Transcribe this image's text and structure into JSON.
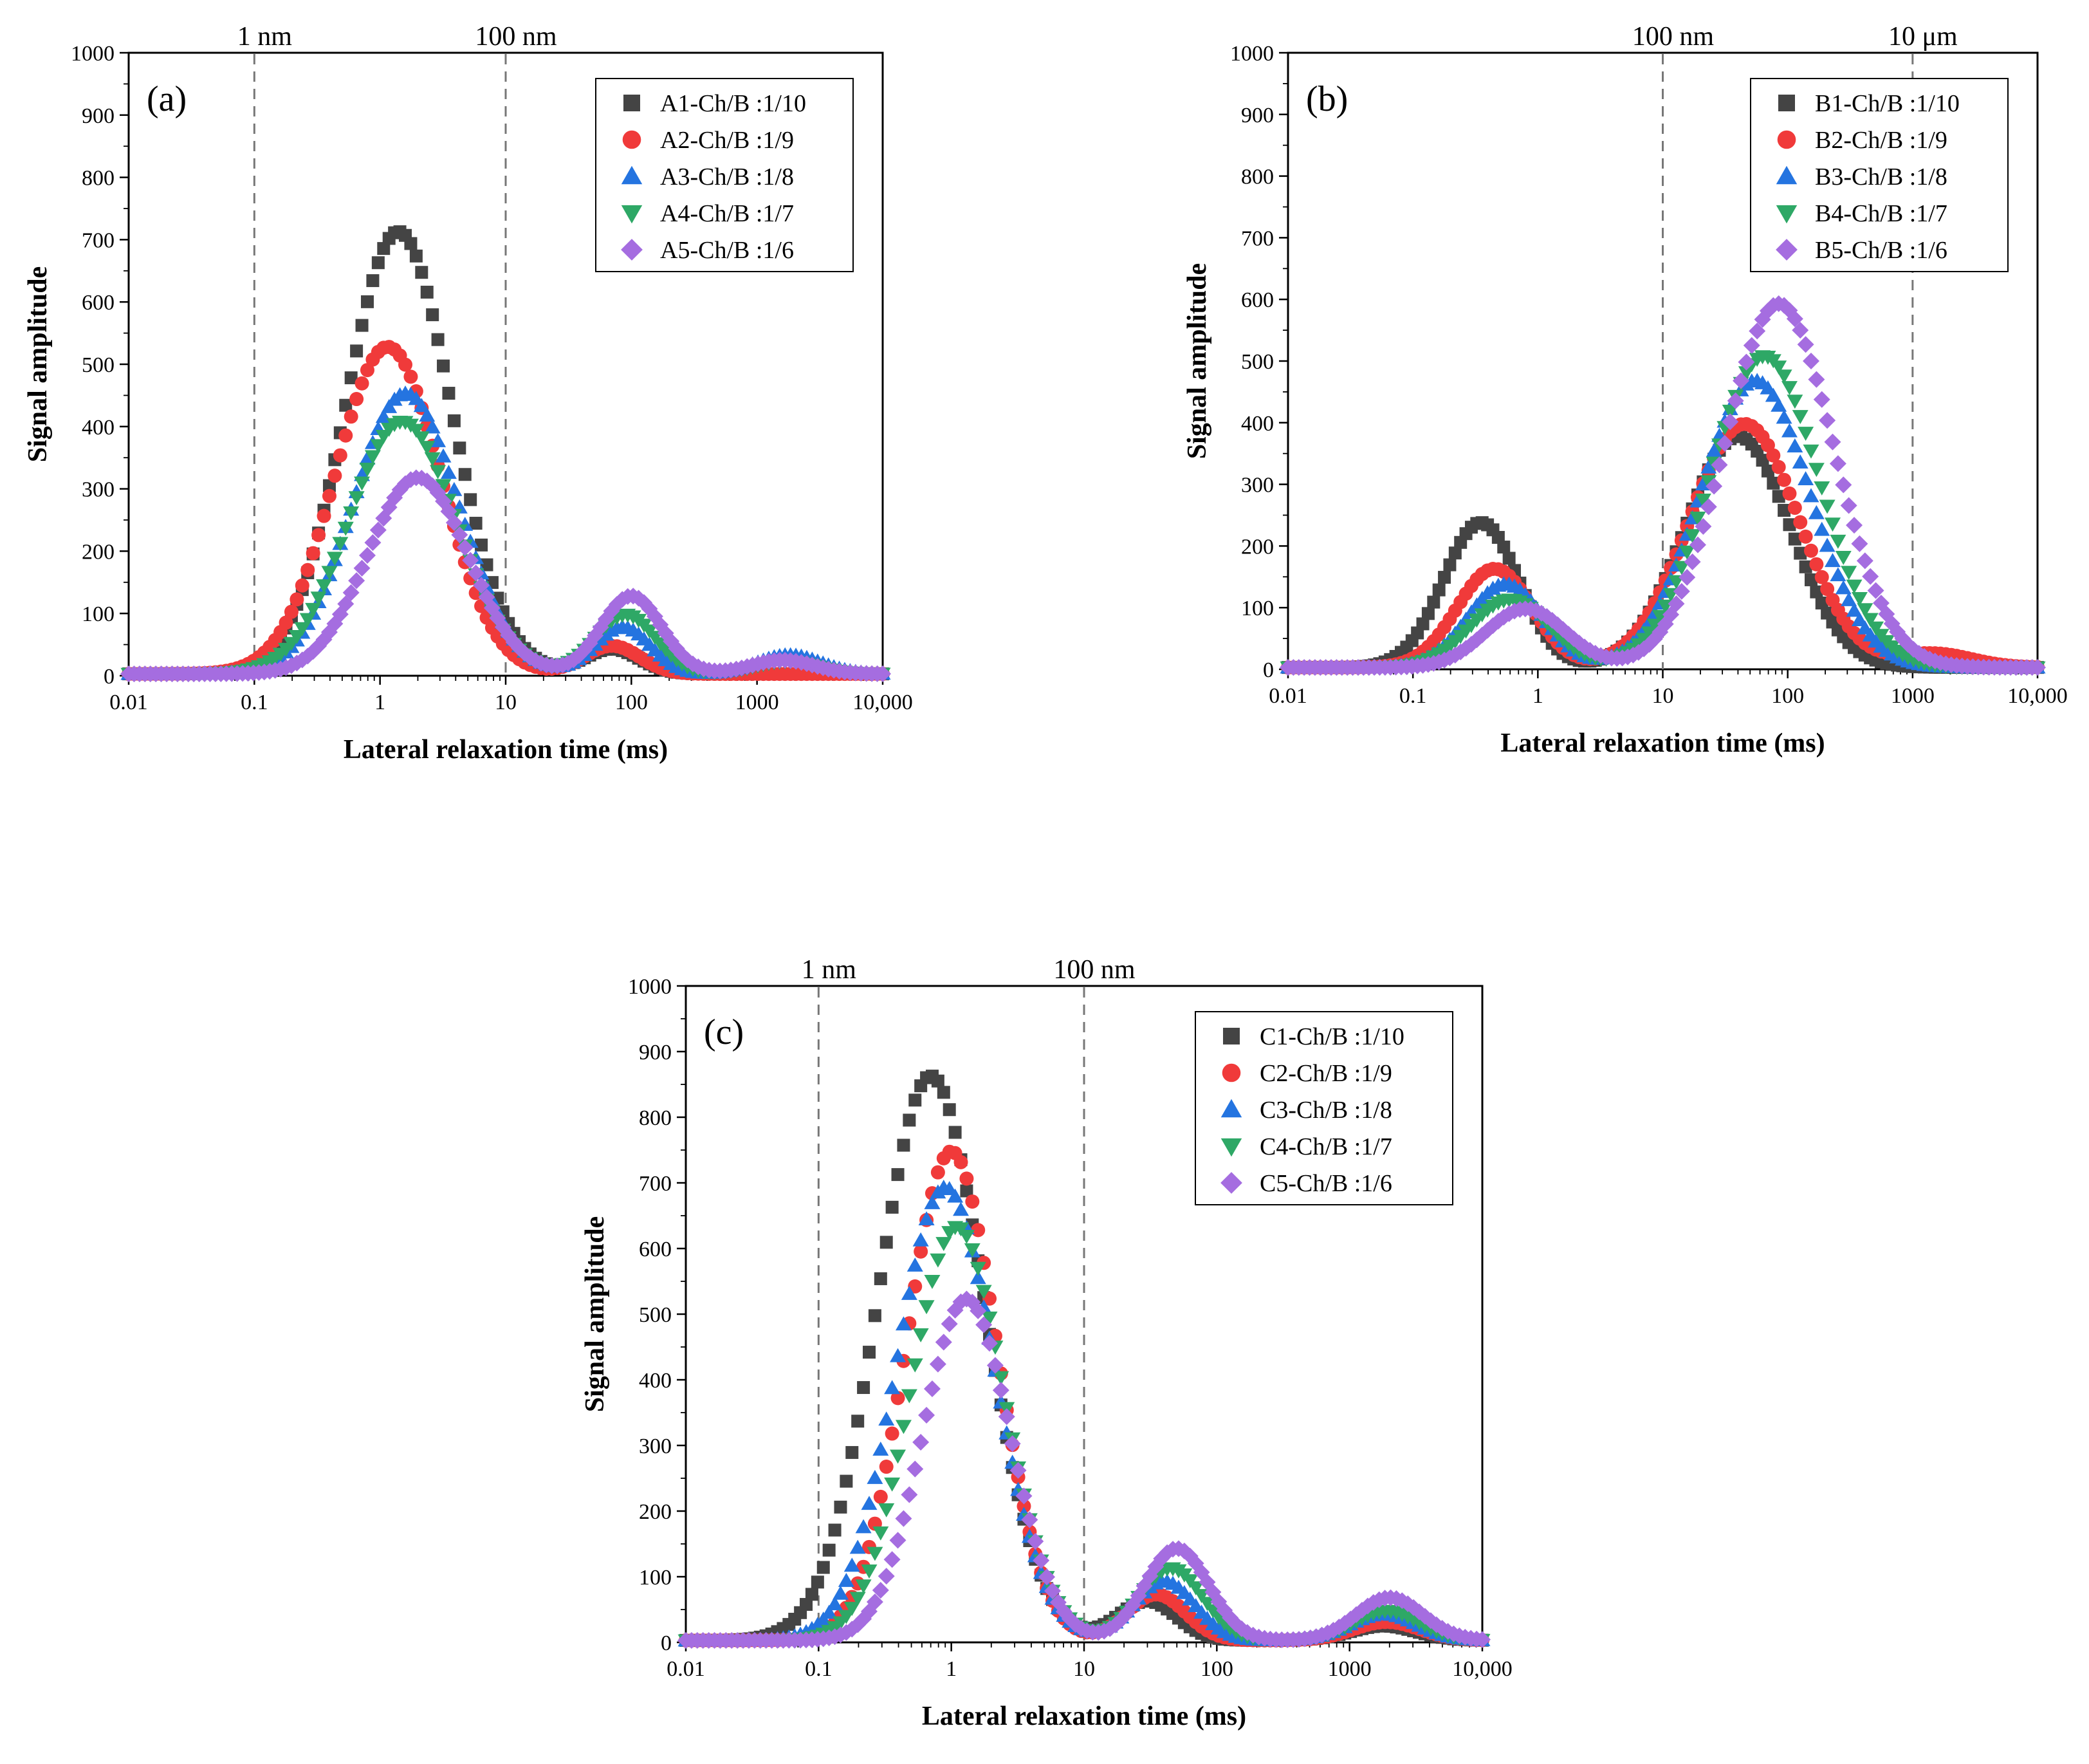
{
  "figure": {
    "series_colors": [
      "#444444",
      "#f03a3a",
      "#2474e0",
      "#2ea866",
      "#a56de0"
    ],
    "series_markers": [
      "square",
      "circle",
      "triangle-up",
      "triangle-down",
      "diamond"
    ]
  },
  "chart_data": [
    {
      "type": "scatter",
      "panel_label": "(a)",
      "xlabel": "Lateral relaxation time (ms)",
      "ylabel": "Signal amplitude",
      "xscale": "log",
      "xlim": [
        0.01,
        10000
      ],
      "ylim": [
        0,
        1000
      ],
      "x_ticks": [
        0.01,
        0.1,
        1,
        10,
        100,
        1000,
        10000
      ],
      "x_tick_labels": [
        "0.01",
        "0.1",
        "1",
        "10",
        "100",
        "1000",
        "10,000"
      ],
      "y_ticks": [
        0,
        100,
        200,
        300,
        400,
        500,
        600,
        700,
        800,
        900,
        1000
      ],
      "y_tick_labels": [
        "0",
        "100",
        "200",
        "300",
        "400",
        "500",
        "600",
        "700",
        "800",
        "900",
        "1000"
      ],
      "reference_lines": [
        {
          "x": 0.1,
          "label": "1 nm"
        },
        {
          "x": 10,
          "label": "100 nm"
        }
      ],
      "legend_position": "top-right",
      "series": [
        {
          "name": "A1-Ch/B :1/10",
          "peaks": [
            {
              "center": 1.4,
              "amp": 710,
              "width": 0.42
            },
            {
              "center": 70,
              "amp": 40,
              "width": 0.22
            }
          ]
        },
        {
          "name": "A2-Ch/B :1/9",
          "peaks": [
            {
              "center": 1.15,
              "amp": 525,
              "width": 0.42
            },
            {
              "center": 70,
              "amp": 45,
              "width": 0.22
            }
          ]
        },
        {
          "name": "A3-Ch/B :1/8",
          "peaks": [
            {
              "center": 1.6,
              "amp": 450,
              "width": 0.42
            },
            {
              "center": 85,
              "amp": 75,
              "width": 0.22
            },
            {
              "center": 1800,
              "amp": 30,
              "width": 0.25
            }
          ]
        },
        {
          "name": "A4-Ch/B :1/7",
          "peaks": [
            {
              "center": 1.5,
              "amp": 405,
              "width": 0.43
            },
            {
              "center": 90,
              "amp": 95,
              "width": 0.24
            },
            {
              "center": 1700,
              "amp": 20,
              "width": 0.25
            }
          ]
        },
        {
          "name": "A5-Ch/B :1/6",
          "peaks": [
            {
              "center": 2.0,
              "amp": 315,
              "width": 0.4
            },
            {
              "center": 100,
              "amp": 125,
              "width": 0.24
            },
            {
              "center": 1600,
              "amp": 22,
              "width": 0.25
            }
          ]
        }
      ]
    },
    {
      "type": "scatter",
      "panel_label": "(b)",
      "xlabel": "Lateral relaxation time (ms)",
      "ylabel": "Signal amplitude",
      "xscale": "log",
      "xlim": [
        0.01,
        10000
      ],
      "ylim": [
        0,
        1000
      ],
      "x_ticks": [
        0.01,
        0.1,
        1,
        10,
        100,
        1000,
        10000
      ],
      "x_tick_labels": [
        "0.01",
        "0.1",
        "1",
        "10",
        "100",
        "1000",
        "10,000"
      ],
      "y_ticks": [
        0,
        100,
        200,
        300,
        400,
        500,
        600,
        700,
        800,
        900,
        1000
      ],
      "y_tick_labels": [
        "0",
        "100",
        "200",
        "300",
        "400",
        "500",
        "600",
        "700",
        "800",
        "900",
        "1000"
      ],
      "reference_lines": [
        {
          "x": 10,
          "label": "100 nm"
        },
        {
          "x": 1000,
          "label": "10 μm"
        }
      ],
      "legend_position": "top-right",
      "series": [
        {
          "name": "B1-Ch/B :1/10",
          "peaks": [
            {
              "center": 0.35,
              "amp": 235,
              "width": 0.3
            },
            {
              "center": 40,
              "amp": 375,
              "width": 0.42
            }
          ]
        },
        {
          "name": "B2-Ch/B :1/9",
          "peaks": [
            {
              "center": 0.45,
              "amp": 160,
              "width": 0.3
            },
            {
              "center": 45,
              "amp": 395,
              "width": 0.44
            },
            {
              "center": 1500,
              "amp": 22,
              "width": 0.3
            }
          ]
        },
        {
          "name": "B3-Ch/B :1/8",
          "peaks": [
            {
              "center": 0.55,
              "amp": 135,
              "width": 0.3
            },
            {
              "center": 55,
              "amp": 465,
              "width": 0.44
            }
          ]
        },
        {
          "name": "B4-Ch/B :1/7",
          "peaks": [
            {
              "center": 0.6,
              "amp": 110,
              "width": 0.32
            },
            {
              "center": 65,
              "amp": 505,
              "width": 0.44
            }
          ]
        },
        {
          "name": "B5-Ch/B :1/6",
          "peaks": [
            {
              "center": 0.8,
              "amp": 95,
              "width": 0.32
            },
            {
              "center": 85,
              "amp": 590,
              "width": 0.44
            }
          ]
        }
      ]
    },
    {
      "type": "scatter",
      "panel_label": "(c)",
      "xlabel": "Lateral relaxation time (ms)",
      "ylabel": "Signal amplitude",
      "xscale": "log",
      "xlim": [
        0.01,
        10000
      ],
      "ylim": [
        0,
        1000
      ],
      "x_ticks": [
        0.01,
        0.1,
        1,
        10,
        100,
        1000,
        10000
      ],
      "x_tick_labels": [
        "0.01",
        "0.1",
        "1",
        "10",
        "100",
        "1000",
        "10,000"
      ],
      "y_ticks": [
        0,
        100,
        200,
        300,
        400,
        500,
        600,
        700,
        800,
        900,
        1000
      ],
      "y_tick_labels": [
        "0",
        "100",
        "200",
        "300",
        "400",
        "500",
        "600",
        "700",
        "800",
        "900",
        "1000"
      ],
      "reference_lines": [
        {
          "x": 0.1,
          "label": "1 nm"
        },
        {
          "x": 10,
          "label": "100 nm"
        }
      ],
      "legend_position": "top-right",
      "series": [
        {
          "name": "C1-Ch/B :1/10",
          "peaks": [
            {
              "center": 0.7,
              "amp": 860,
              "width": 0.4
            },
            {
              "center": 30,
              "amp": 60,
              "width": 0.22
            },
            {
              "center": 1800,
              "amp": 22,
              "width": 0.25
            }
          ]
        },
        {
          "name": "C2-Ch/B :1/9",
          "peaks": [
            {
              "center": 1.0,
              "amp": 745,
              "width": 0.34
            },
            {
              "center": 35,
              "amp": 70,
              "width": 0.22
            },
            {
              "center": 1900,
              "amp": 28,
              "width": 0.25
            }
          ]
        },
        {
          "name": "C3-Ch/B :1/8",
          "peaks": [
            {
              "center": 0.9,
              "amp": 690,
              "width": 0.37
            },
            {
              "center": 40,
              "amp": 90,
              "width": 0.23
            },
            {
              "center": 1800,
              "amp": 40,
              "width": 0.25
            }
          ]
        },
        {
          "name": "C4-Ch/B :1/7",
          "peaks": [
            {
              "center": 1.1,
              "amp": 630,
              "width": 0.35
            },
            {
              "center": 45,
              "amp": 110,
              "width": 0.24
            },
            {
              "center": 1900,
              "amp": 45,
              "width": 0.25
            }
          ]
        },
        {
          "name": "C5-Ch/B :1/6",
          "peaks": [
            {
              "center": 1.3,
              "amp": 520,
              "width": 0.33
            },
            {
              "center": 50,
              "amp": 140,
              "width": 0.24
            },
            {
              "center": 2000,
              "amp": 65,
              "width": 0.25
            }
          ]
        }
      ]
    }
  ]
}
